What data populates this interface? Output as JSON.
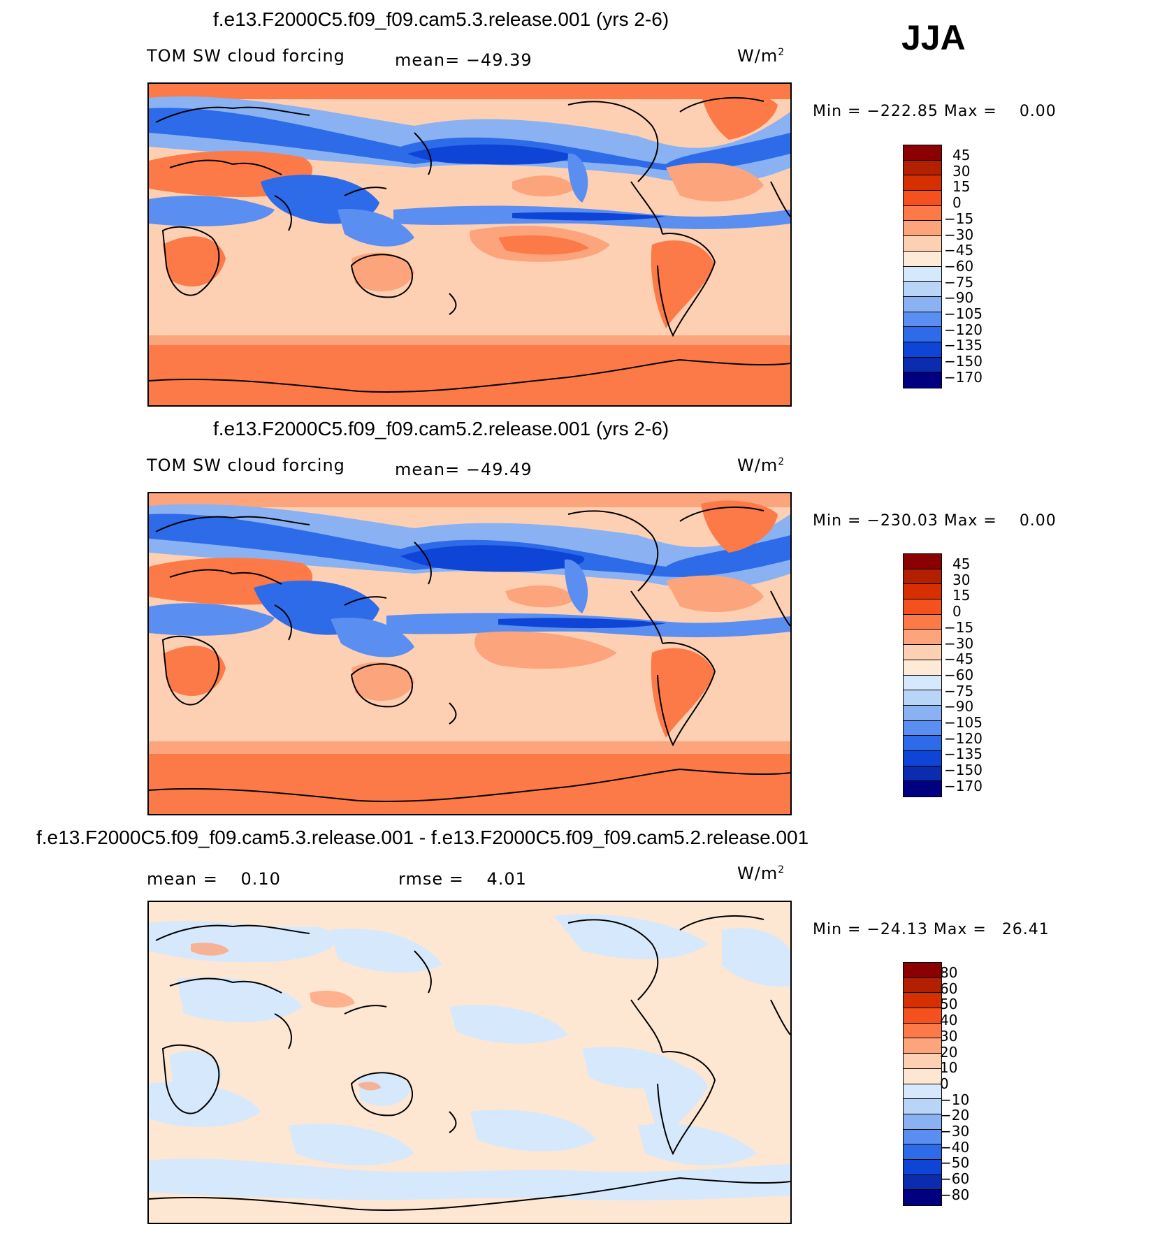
{
  "season": "JJA",
  "units": "W/m",
  "units_exp": "2",
  "panels": [
    {
      "title": "f.e13.F2000C5.f09_f09.cam5.3.release.001 (yrs 2-6)",
      "variable": "TOM SW cloud forcing",
      "mean_label": "mean=",
      "mean_value": "−49.39",
      "min_label": "Min =",
      "min_value": "−222.85",
      "max_label": "Max =",
      "max_value": "0.00",
      "levels": [
        "45",
        "30",
        "15",
        "0",
        "−15",
        "−30",
        "−45",
        "−60",
        "−75",
        "−90",
        "−105",
        "−120",
        "−135",
        "−150",
        "−170"
      ]
    },
    {
      "title": "f.e13.F2000C5.f09_f09.cam5.2.release.001 (yrs 2-6)",
      "variable": "TOM SW cloud forcing",
      "mean_label": "mean=",
      "mean_value": "−49.49",
      "min_label": "Min =",
      "min_value": "−230.03",
      "max_label": "Max =",
      "max_value": "0.00",
      "levels": [
        "45",
        "30",
        "15",
        "0",
        "−15",
        "−30",
        "−45",
        "−60",
        "−75",
        "−90",
        "−105",
        "−120",
        "−135",
        "−150",
        "−170"
      ]
    },
    {
      "title": "f.e13.F2000C5.f09_f09.cam5.3.release.001 - f.e13.F2000C5.f09_f09.cam5.2.release.001",
      "mean_label": "mean =",
      "mean_value": "0.10",
      "rmse_label": "rmse =",
      "rmse_value": "4.01",
      "min_label": "Min =",
      "min_value": "−24.13",
      "max_label": "Max =",
      "max_value": "26.41",
      "levels": [
        "80",
        "60",
        "50",
        "40",
        "30",
        "20",
        "10",
        "0",
        "−10",
        "−20",
        "−30",
        "−40",
        "−50",
        "−60",
        "−80"
      ]
    }
  ],
  "colors": {
    "field_scale": [
      "#8b0000",
      "#b22000",
      "#d73000",
      "#f4511e",
      "#fc7a47",
      "#fca47c",
      "#fdd0b4",
      "#fdebd7",
      "#d6e8fb",
      "#b8d4f7",
      "#8ab2f2",
      "#5a8ef0",
      "#2d6be8",
      "#0f45d6",
      "#0c2cb0",
      "#000080"
    ],
    "diff_scale": [
      "#8b0000",
      "#b22000",
      "#d73000",
      "#f4511e",
      "#fc7a47",
      "#fca47c",
      "#fdd0b4",
      "#fde7d3",
      "#d6e8fb",
      "#b8d4f7",
      "#8ab2f2",
      "#5a8ef0",
      "#2d6be8",
      "#0f45d6",
      "#0c2cb0",
      "#000080"
    ]
  }
}
